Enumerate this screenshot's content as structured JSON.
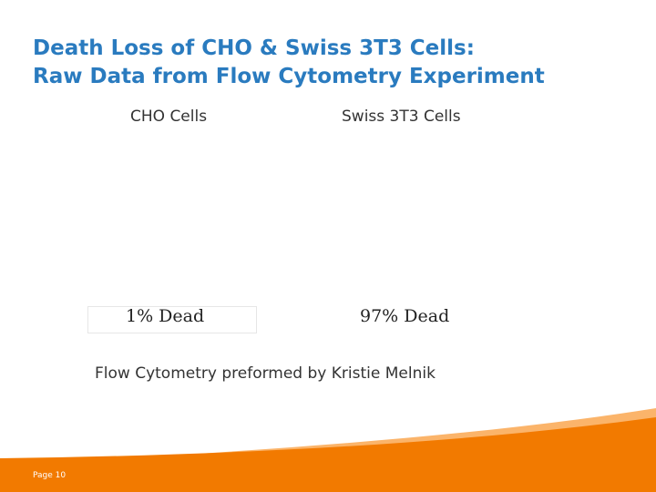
{
  "slide": {
    "title_line1": "Death Loss of CHO & Swiss 3T3 Cells:",
    "title_line2": "Raw Data from Flow Cytometry Experiment",
    "columns": [
      {
        "header": "CHO Cells",
        "result": "1% Dead"
      },
      {
        "header": "Swiss 3T3 Cells",
        "result": "97% Dead"
      }
    ],
    "credit": "Flow Cytometry preformed by Kristie Melnik",
    "page_label": "Page 10"
  },
  "colors": {
    "title": "#2A7BBF",
    "accent_orange": "#F27A00",
    "accent_orange_light": "#FBB46A"
  }
}
